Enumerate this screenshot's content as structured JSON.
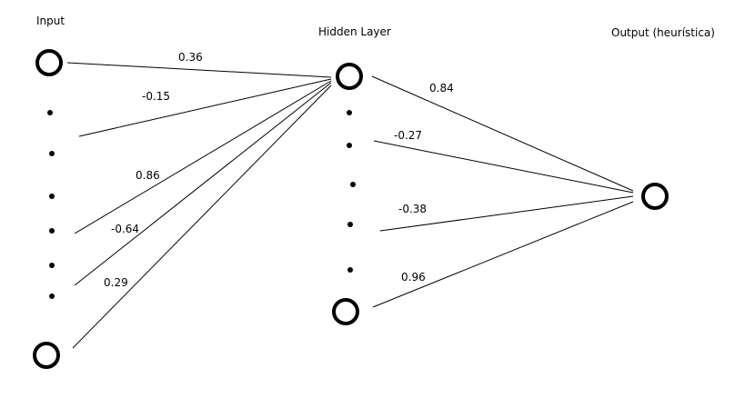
{
  "layers": {
    "input": {
      "title": "Input"
    },
    "hidden": {
      "title": "Hidden Layer"
    },
    "output": {
      "title": "Output (heurística)"
    }
  },
  "weights": {
    "input_to_hidden": [
      "0.36",
      "-0.15",
      "0.86",
      "-0.64",
      "0.29"
    ],
    "hidden_to_output": [
      "0.84",
      "-0.27",
      "-0.38",
      "0.96"
    ]
  },
  "colors": {
    "stroke": "#000000",
    "background": "#ffffff"
  }
}
